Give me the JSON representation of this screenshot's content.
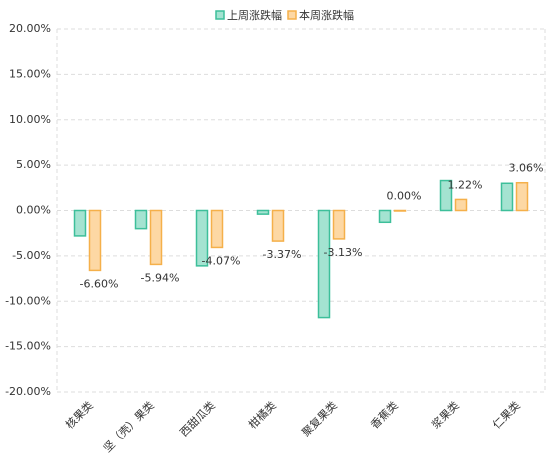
{
  "chart_data": {
    "type": "bar",
    "categories": [
      "核果类",
      "坚（壳）果类",
      "西甜瓜类",
      "柑橘类",
      "聚复果类",
      "香蕉类",
      "浆果类",
      "仁果类"
    ],
    "series": [
      {
        "name": "上周涨跌幅",
        "color": "#3dbf9a",
        "values": [
          -2.8,
          -2.0,
          -6.1,
          -0.4,
          -11.8,
          -1.3,
          3.3,
          3.0
        ]
      },
      {
        "name": "本周涨跌幅",
        "color": "#f5b04a",
        "values": [
          -6.6,
          -5.94,
          -4.07,
          -3.37,
          -3.13,
          0,
          1.22,
          3.06
        ],
        "value_labels": [
          "-6.60%",
          "-5.94%",
          "-4.07%",
          "-3.37%",
          "-3.13%",
          "0.00%",
          "1.22%",
          "3.06%"
        ]
      }
    ],
    "ylim": [
      -20,
      20
    ],
    "yticks": [
      {
        "value": -20,
        "label": "-20.00%"
      },
      {
        "value": -15,
        "label": "-15.00%"
      },
      {
        "value": -10,
        "label": "-10.00%"
      },
      {
        "value": -5,
        "label": "-5.00%"
      },
      {
        "value": 0,
        "label": "0.00%"
      },
      {
        "value": 5,
        "label": "5.00%"
      },
      {
        "value": 10,
        "label": "10.00%"
      },
      {
        "value": 15,
        "label": "15.00%"
      },
      {
        "value": 20,
        "label": "20.00%"
      }
    ],
    "grid": true,
    "legend": "top"
  }
}
